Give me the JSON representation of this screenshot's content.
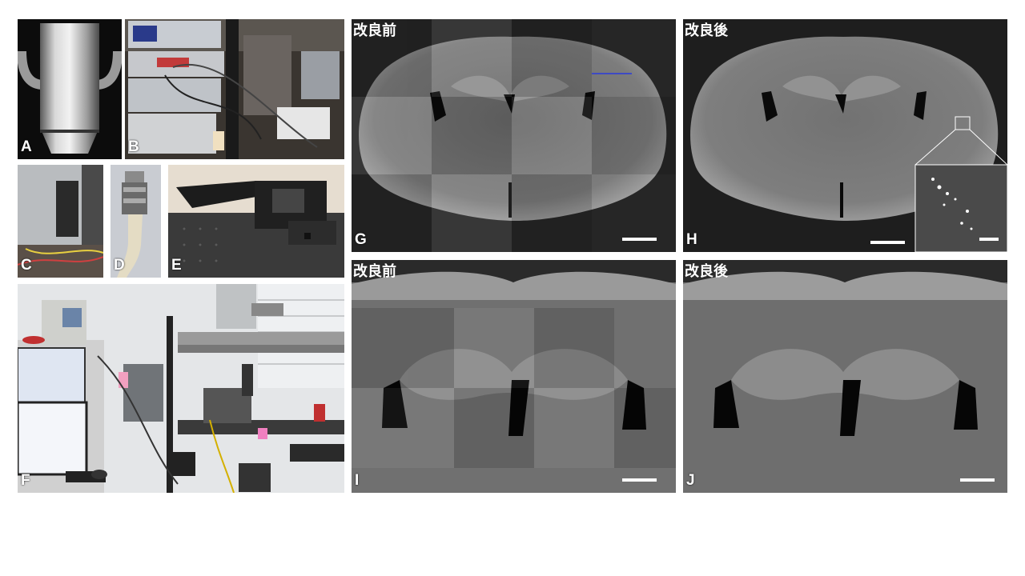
{
  "panels": {
    "a": {
      "letter": "A"
    },
    "b": {
      "letter": "B"
    },
    "c": {
      "letter": "C"
    },
    "d": {
      "letter": "D"
    },
    "e": {
      "letter": "E"
    },
    "f": {
      "letter": "F"
    },
    "g": {
      "letter": "G",
      "condition": "改良前"
    },
    "h": {
      "letter": "H",
      "condition": "改良後"
    },
    "i": {
      "letter": "I",
      "condition": "改良前"
    },
    "j": {
      "letter": "J",
      "condition": "改良後"
    }
  },
  "icons": [
    "objective-lens",
    "control-electronics",
    "camera-unit",
    "fiber-connector",
    "motorized-stage",
    "microscope-workstation",
    "brain-section",
    "zoom-inset"
  ],
  "colors": {
    "background": "#ffffff",
    "label_text": "#ffffff",
    "tile_base": "#2a2a2a"
  }
}
